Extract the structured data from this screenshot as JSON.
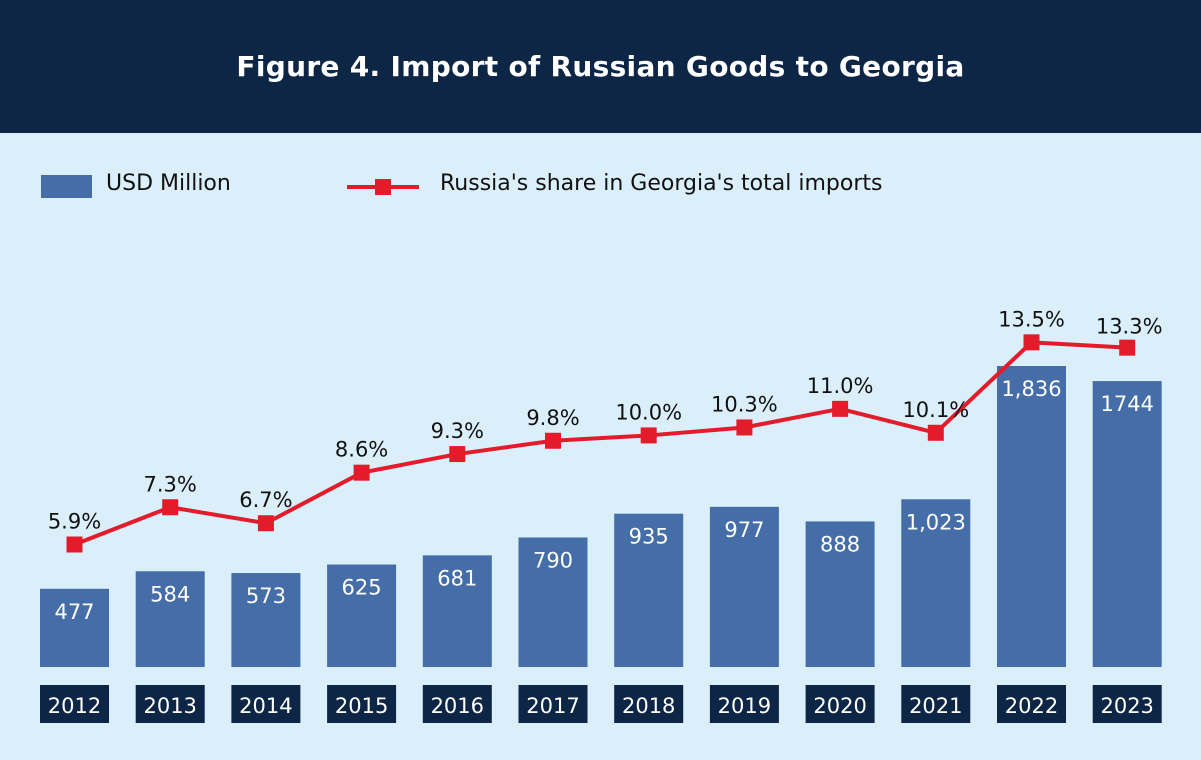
{
  "header": {
    "title": "Figure 4. Import of Russian Goods to Georgia"
  },
  "legend": {
    "bars_label": "USD Million",
    "line_label": "Russia's share in Georgia's total imports"
  },
  "colors": {
    "header_bg": "#0d2646",
    "page_bg": "#dbeffa",
    "bar": "#456ea9",
    "line": "#e41b2a",
    "year_box": "#0d2646"
  },
  "chart_data": {
    "type": "bar",
    "categories": [
      "2012",
      "2013",
      "2014",
      "2015",
      "2016",
      "2017",
      "2018",
      "2019",
      "2020",
      "2021",
      "2022",
      "2023"
    ],
    "series": [
      {
        "name": "USD Million",
        "type": "bar",
        "values": [
          477,
          584,
          573,
          625,
          681,
          790,
          935,
          977,
          888,
          1023,
          1836,
          1744
        ],
        "labels": [
          "477",
          "584",
          "573",
          "625",
          "681",
          "790",
          "935",
          "977",
          "888",
          "1,023",
          "1,836",
          "1744"
        ]
      },
      {
        "name": "Russia's share in Georgia's total imports",
        "type": "line",
        "values": [
          5.9,
          7.3,
          6.7,
          8.6,
          9.3,
          9.8,
          10.0,
          10.3,
          11.0,
          10.1,
          13.5,
          13.3
        ],
        "labels": [
          "5.9%",
          "7.3%",
          "6.7%",
          "8.6%",
          "9.3%",
          "9.8%",
          "10.0%",
          "10.3%",
          "11.0%",
          "10.1%",
          "13.5%",
          "13.3%"
        ]
      }
    ],
    "grid": false,
    "legend_position": "top-left"
  }
}
